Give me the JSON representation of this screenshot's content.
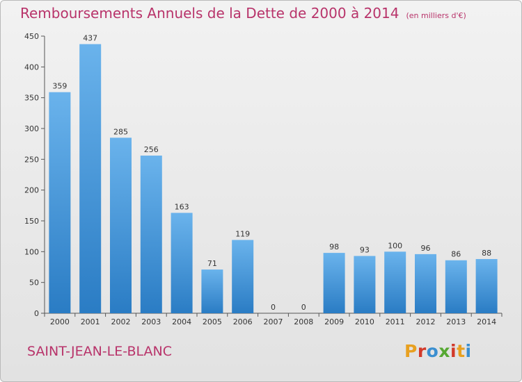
{
  "header": {
    "title": "Remboursements Annuels de la Dette de 2000 à 2014",
    "unit": "(en milliers d'€)"
  },
  "footer": {
    "town": "SAINT-JEAN-LE-BLANC",
    "logo": "Proxiti",
    "logo_colors": [
      "#e8a020",
      "#d23a2a",
      "#3a8fd0",
      "#56a832",
      "#d23a2a",
      "#e8a020",
      "#3a8fd0"
    ]
  },
  "colors": {
    "bar_top": "#6ab3ec",
    "bar_bottom": "#2a7cc4",
    "title": "#b8336a"
  },
  "chart_data": {
    "type": "bar",
    "title": "Remboursements Annuels de la Dette de 2000 à 2014",
    "xlabel": "",
    "ylabel": "",
    "categories": [
      "2000",
      "2001",
      "2002",
      "2003",
      "2004",
      "2005",
      "2006",
      "2007",
      "2008",
      "2009",
      "2010",
      "2011",
      "2012",
      "2013",
      "2014"
    ],
    "values": [
      359,
      437,
      285,
      256,
      163,
      71,
      119,
      0,
      0,
      98,
      93,
      100,
      96,
      86,
      88
    ],
    "ylim": [
      0,
      450
    ],
    "yticks": [
      0,
      50,
      100,
      150,
      200,
      250,
      300,
      350,
      400,
      450
    ],
    "grid": false,
    "legend": "none"
  }
}
